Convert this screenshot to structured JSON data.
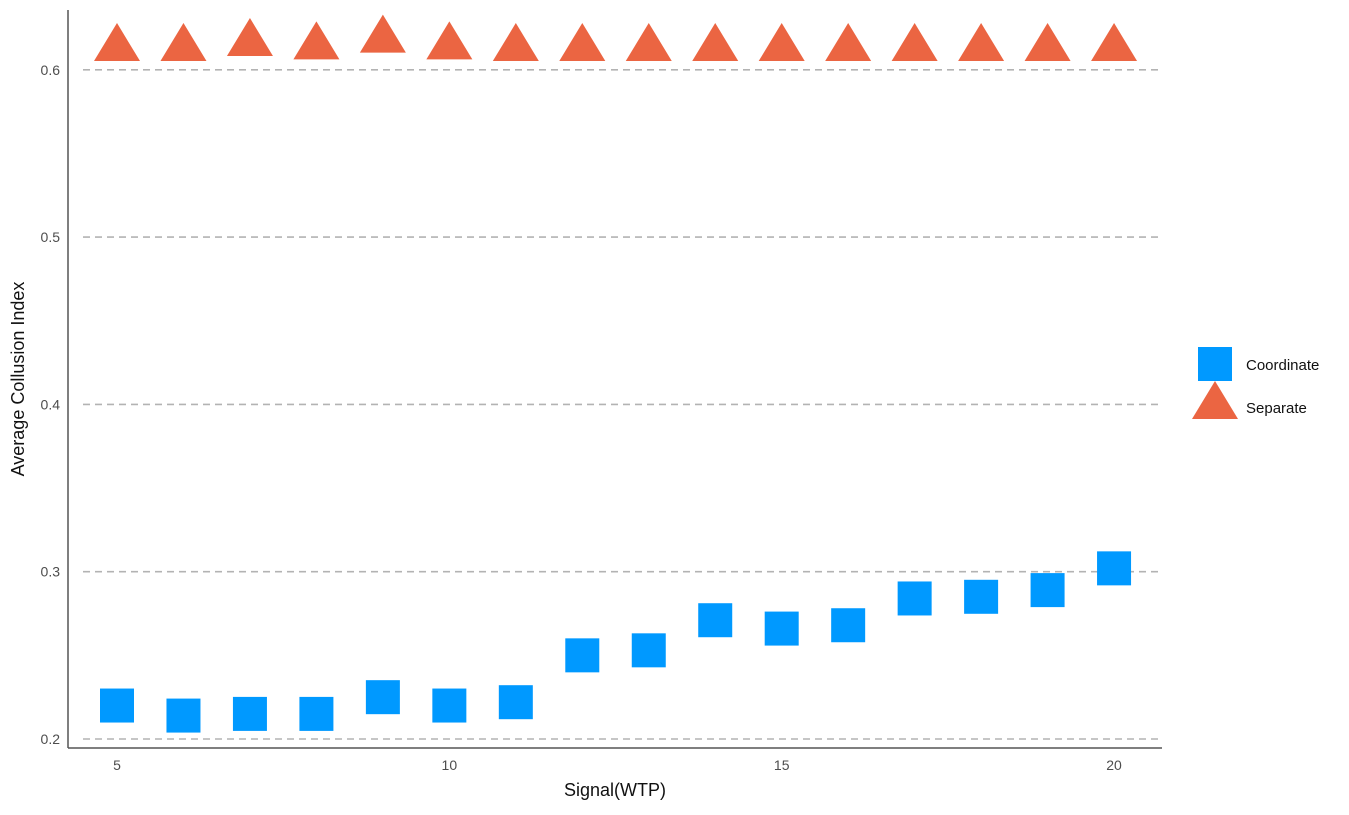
{
  "chart_data": {
    "type": "scatter",
    "title": "",
    "xlabel": "Signal(WTP)",
    "ylabel": "Average Collusion Index",
    "xlim": [
      4.25,
      21.6
    ],
    "ylim": [
      0.193,
      0.636
    ],
    "x_ticks": [
      5,
      10,
      15,
      20
    ],
    "y_ticks": [
      0.2,
      0.3,
      0.4,
      0.5,
      0.6
    ],
    "x_tick_labels": [
      "5",
      "10",
      "15",
      "20"
    ],
    "y_tick_labels": [
      "0.2",
      "0.3",
      "0.4",
      "0.5",
      "0.6"
    ],
    "grid": "horizontal dashed",
    "legend_position": "right",
    "x": [
      5,
      6,
      7,
      8,
      9,
      10,
      11,
      12,
      13,
      14,
      15,
      16,
      17,
      18,
      19,
      20
    ],
    "series": [
      {
        "name": "Coordinate",
        "marker": "square",
        "color": "#0099FF",
        "values": [
          0.22,
          0.214,
          0.215,
          0.215,
          0.225,
          0.22,
          0.222,
          0.25,
          0.253,
          0.271,
          0.266,
          0.268,
          0.284,
          0.285,
          0.289,
          0.302
        ]
      },
      {
        "name": "Separate",
        "marker": "triangle",
        "color": "#EB6542",
        "values": [
          0.613,
          0.613,
          0.616,
          0.614,
          0.618,
          0.614,
          0.613,
          0.613,
          0.613,
          0.613,
          0.613,
          0.613,
          0.613,
          0.613,
          0.613,
          0.613
        ]
      }
    ]
  }
}
